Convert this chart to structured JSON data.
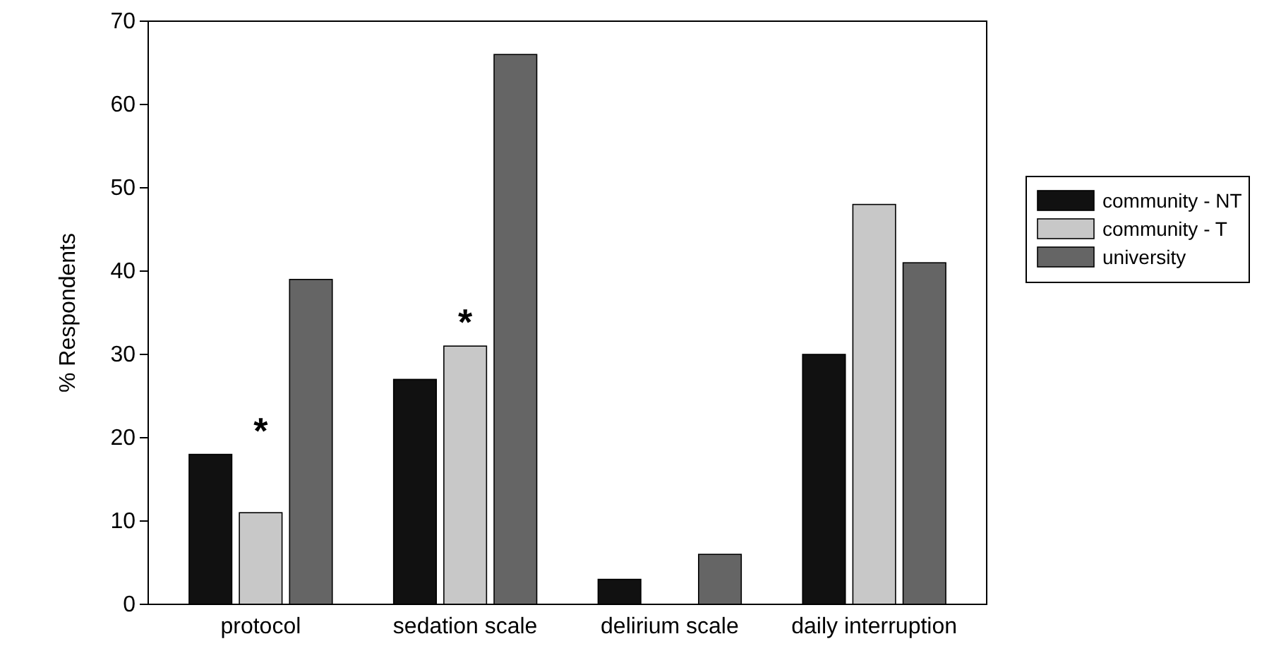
{
  "chart_data": {
    "type": "bar",
    "ylabel": "% Respondents",
    "categories": [
      "protocol",
      "sedation scale",
      "delirium scale",
      "daily interruption"
    ],
    "series": [
      {
        "name": "community - NT",
        "color": "#111111",
        "values": [
          18,
          27,
          3,
          30
        ]
      },
      {
        "name": "community - T",
        "color": "#c8c8c8",
        "values": [
          11,
          31,
          0,
          48
        ]
      },
      {
        "name": "university",
        "color": "#656565",
        "values": [
          39,
          66,
          6,
          41
        ]
      }
    ],
    "ylim": [
      0,
      70
    ],
    "yticks": [
      0,
      10,
      20,
      30,
      40,
      50,
      60,
      70
    ],
    "grid": false,
    "legend": "right",
    "annotations": [
      "*",
      "*"
    ]
  }
}
